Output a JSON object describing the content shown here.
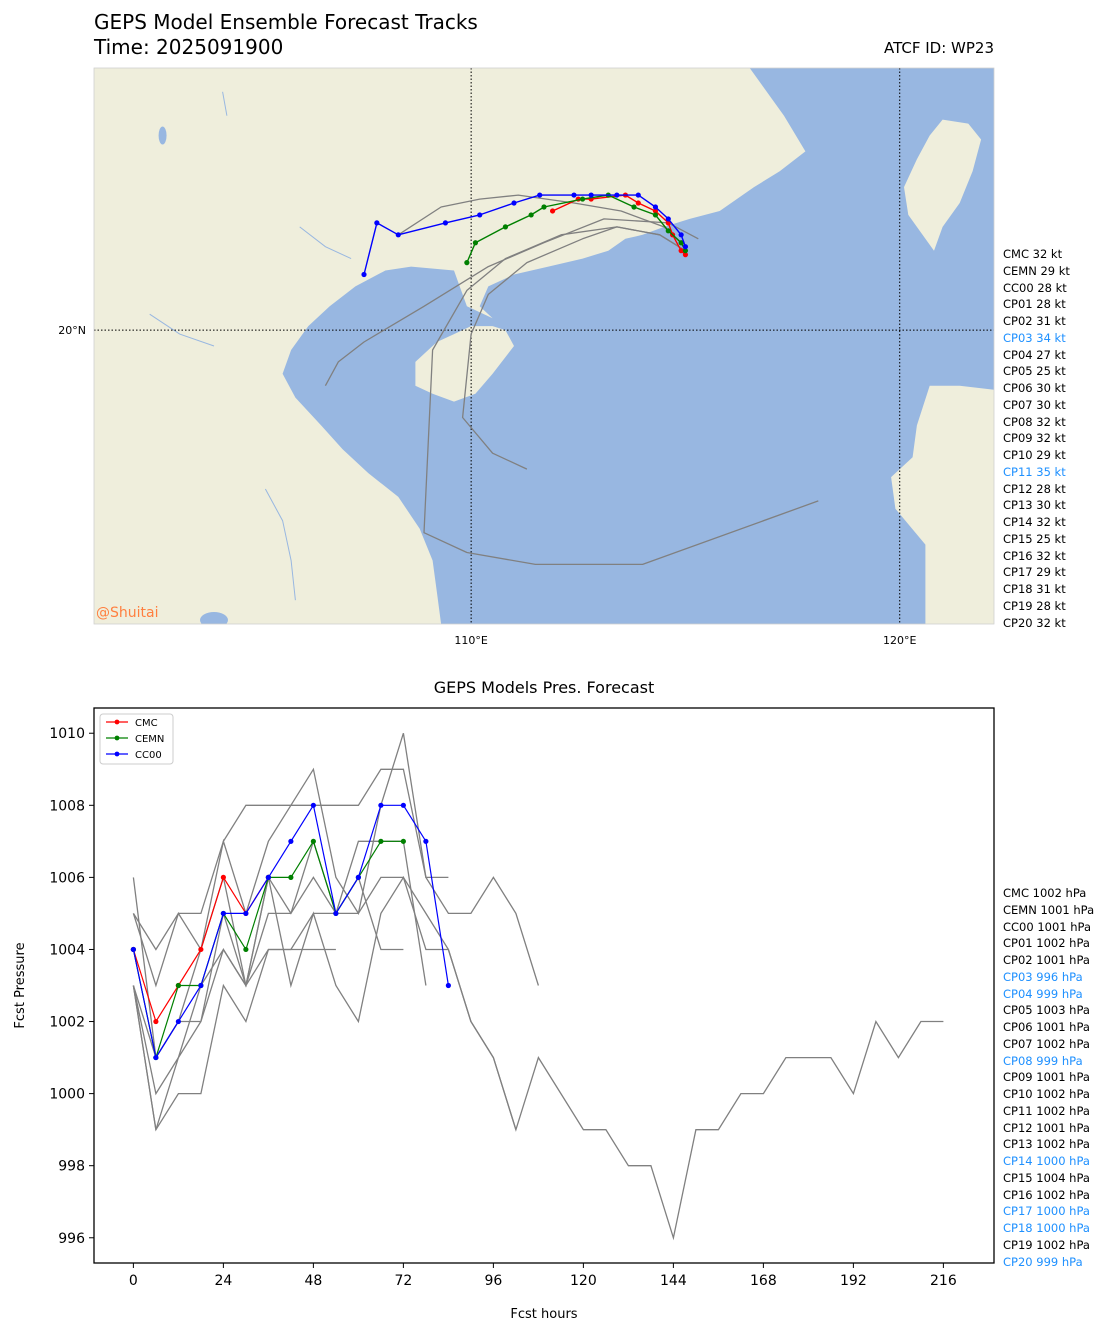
{
  "header": {
    "title": "GEPS Model Ensemble Forecast Tracks",
    "time": "Time: 2025091900",
    "atcf": "ATCF ID: WP23",
    "watermark": "@Shuitai"
  },
  "map": {
    "lat_labels": [
      "20°N"
    ],
    "lon_labels": [
      "110°E",
      "120°E"
    ],
    "colors": {
      "land": "#efeedc",
      "water": "#98b7e1",
      "river": "#98b7e1"
    }
  },
  "track_labels": [
    {
      "text": "CMC 32 kt",
      "highlight": false
    },
    {
      "text": "CEMN 29 kt",
      "highlight": false
    },
    {
      "text": "CC00 28 kt",
      "highlight": false
    },
    {
      "text": "CP01 28 kt",
      "highlight": false
    },
    {
      "text": "CP02 31 kt",
      "highlight": false
    },
    {
      "text": "CP03 34 kt",
      "highlight": true
    },
    {
      "text": "CP04 27 kt",
      "highlight": false
    },
    {
      "text": "CP05 25 kt",
      "highlight": false
    },
    {
      "text": "CP06 30 kt",
      "highlight": false
    },
    {
      "text": "CP07 30 kt",
      "highlight": false
    },
    {
      "text": "CP08 32 kt",
      "highlight": false
    },
    {
      "text": "CP09 32 kt",
      "highlight": false
    },
    {
      "text": "CP10 29 kt",
      "highlight": false
    },
    {
      "text": "CP11 35 kt",
      "highlight": true
    },
    {
      "text": "CP12 28 kt",
      "highlight": false
    },
    {
      "text": "CP13 30 kt",
      "highlight": false
    },
    {
      "text": "CP14 32 kt",
      "highlight": false
    },
    {
      "text": "CP15 25 kt",
      "highlight": false
    },
    {
      "text": "CP16 32 kt",
      "highlight": false
    },
    {
      "text": "CP17 29 kt",
      "highlight": false
    },
    {
      "text": "CP18 31 kt",
      "highlight": false
    },
    {
      "text": "CP19 28 kt",
      "highlight": false
    },
    {
      "text": "CP20 32 kt",
      "highlight": false
    }
  ],
  "pressure_labels": [
    {
      "text": "CMC 1002 hPa",
      "highlight": false
    },
    {
      "text": "CEMN 1001 hPa",
      "highlight": false
    },
    {
      "text": "CC00 1001 hPa",
      "highlight": false
    },
    {
      "text": "CP01 1002 hPa",
      "highlight": false
    },
    {
      "text": "CP02 1001 hPa",
      "highlight": false
    },
    {
      "text": "CP03 996 hPa",
      "highlight": true
    },
    {
      "text": "CP04 999 hPa",
      "highlight": true
    },
    {
      "text": "CP05 1003 hPa",
      "highlight": false
    },
    {
      "text": "CP06 1001 hPa",
      "highlight": false
    },
    {
      "text": "CP07 1002 hPa",
      "highlight": false
    },
    {
      "text": "CP08 999 hPa",
      "highlight": true
    },
    {
      "text": "CP09 1001 hPa",
      "highlight": false
    },
    {
      "text": "CP10 1002 hPa",
      "highlight": false
    },
    {
      "text": "CP11 1002 hPa",
      "highlight": false
    },
    {
      "text": "CP12 1001 hPa",
      "highlight": false
    },
    {
      "text": "CP13 1002 hPa",
      "highlight": false
    },
    {
      "text": "CP14 1000 hPa",
      "highlight": true
    },
    {
      "text": "CP15 1004 hPa",
      "highlight": false
    },
    {
      "text": "CP16 1002 hPa",
      "highlight": false
    },
    {
      "text": "CP17 1000 hPa",
      "highlight": true
    },
    {
      "text": "CP18 1000 hPa",
      "highlight": true
    },
    {
      "text": "CP19 1002 hPa",
      "highlight": false
    },
    {
      "text": "CP20 999 hPa",
      "highlight": true
    }
  ],
  "chart_data": [
    {
      "type": "line",
      "title": "GEPS Model Ensemble Forecast Tracks",
      "xlabel": "",
      "ylabel": "",
      "xlim": [
        101.2,
        122.2
      ],
      "ylim": [
        12.6,
        26.6
      ],
      "xticks": [
        110,
        120
      ],
      "yticks": [
        20
      ],
      "series": [
        {
          "name": "CMC",
          "color": "#ff0000",
          "lon": [
            115.0,
            114.9,
            114.7,
            114.6,
            114.3,
            113.9,
            113.6,
            112.8,
            112.5,
            111.9
          ],
          "lat": [
            21.9,
            22.0,
            22.4,
            22.7,
            23.0,
            23.2,
            23.4,
            23.3,
            23.3,
            23.0
          ]
        },
        {
          "name": "CEMN",
          "color": "#008000",
          "lon": [
            115.0,
            114.9,
            114.6,
            114.3,
            113.8,
            113.2,
            112.6,
            111.7,
            111.4,
            110.8,
            110.1,
            109.9
          ],
          "lat": [
            22.0,
            22.2,
            22.5,
            22.9,
            23.1,
            23.4,
            23.3,
            23.1,
            22.9,
            22.6,
            22.2,
            21.7
          ]
        },
        {
          "name": "CC00",
          "color": "#0000ff",
          "lon": [
            115.0,
            114.9,
            114.6,
            114.3,
            113.9,
            113.4,
            112.8,
            112.4,
            111.6,
            111.0,
            110.2,
            109.4,
            108.3,
            107.8,
            107.5
          ],
          "lat": [
            22.1,
            22.4,
            22.8,
            23.1,
            23.4,
            23.4,
            23.4,
            23.4,
            23.4,
            23.2,
            22.9,
            22.7,
            22.4,
            22.7,
            21.4
          ]
        },
        {
          "name": "",
          "color": "#808080",
          "lon": [
            115.3,
            114.6,
            113.1,
            111.7,
            110.4,
            108.9,
            107.5,
            106.9,
            106.6
          ],
          "lat": [
            22.3,
            22.7,
            22.8,
            22.2,
            21.6,
            20.6,
            19.7,
            19.2,
            18.6
          ]
        },
        {
          "name": "",
          "color": "#808080",
          "lon": [
            115.0,
            114.4,
            113.4,
            112.6,
            111.3,
            110.4,
            110.0,
            109.8,
            110.5,
            111.3
          ],
          "lat": [
            22.0,
            22.4,
            22.6,
            22.3,
            21.7,
            20.9,
            19.9,
            17.8,
            16.9,
            16.5
          ]
        },
        {
          "name": "",
          "color": "#808080",
          "lon": [
            115.0,
            114.4,
            113.4,
            112.1,
            110.8,
            109.9,
            109.1,
            108.9,
            109.9,
            111.5,
            114.0,
            118.1
          ],
          "lat": [
            22.0,
            22.4,
            22.6,
            22.4,
            21.8,
            21.0,
            19.5,
            14.9,
            14.4,
            14.1,
            14.1,
            15.7
          ]
        },
        {
          "name": "",
          "color": "#808080",
          "lon": [
            115.0,
            114.5,
            113.5,
            112.4,
            111.1,
            110.2,
            109.3,
            108.3
          ],
          "lat": [
            22.1,
            22.6,
            23.0,
            23.2,
            23.4,
            23.3,
            23.1,
            22.4
          ]
        }
      ]
    },
    {
      "type": "line",
      "title": "GEPS Models Pres. Forecast",
      "xlabel": "Fcst hours",
      "ylabel": "Fcst Pressure",
      "xlim": [
        -10.5,
        229.5
      ],
      "ylim": [
        995.3,
        1010.7
      ],
      "xticks": [
        0,
        24,
        48,
        72,
        96,
        120,
        144,
        168,
        192,
        216
      ],
      "yticks": [
        996,
        998,
        1000,
        1002,
        1004,
        1006,
        1008,
        1010
      ],
      "legend": "upper-left",
      "series": [
        {
          "name": "CMC",
          "color": "#ff0000",
          "x": [
            0,
            6,
            12,
            18,
            24,
            30,
            36
          ],
          "y": [
            1004,
            1002,
            1003,
            1004,
            1006,
            1005,
            1006
          ]
        },
        {
          "name": "CEMN",
          "color": "#008000",
          "x": [
            0,
            6,
            12,
            18,
            24,
            30,
            36,
            42,
            48,
            54,
            60,
            66,
            72
          ],
          "y": [
            1004,
            1001,
            1003,
            1003,
            1005,
            1004,
            1006,
            1006,
            1007,
            1005,
            1006,
            1007,
            1007
          ]
        },
        {
          "name": "CC00",
          "color": "#0000ff",
          "x": [
            0,
            6,
            12,
            18,
            24,
            30,
            36,
            42,
            48,
            54,
            60,
            66,
            72,
            78,
            84
          ],
          "y": [
            1004,
            1001,
            1002,
            1003,
            1005,
            1005,
            1006,
            1007,
            1008,
            1005,
            1006,
            1008,
            1008,
            1007,
            1003
          ]
        },
        {
          "name": "",
          "color": "#808080",
          "x": [
            0,
            6,
            12,
            18,
            24,
            30,
            36,
            42,
            48,
            54,
            60,
            66,
            72,
            78,
            84,
            90,
            96,
            102,
            108,
            114,
            120,
            126,
            132,
            138,
            144,
            150,
            156,
            162,
            168,
            174,
            180,
            186,
            192,
            198,
            204,
            210,
            216
          ],
          "y": [
            1003,
            999,
            1000,
            1000,
            1003,
            1002,
            1004,
            1004,
            1005,
            1005,
            1005,
            1006,
            1006,
            1005,
            1004,
            1002,
            1001,
            999,
            1001,
            1000,
            999,
            999,
            998,
            998,
            996,
            999,
            999,
            1000,
            1000,
            1001,
            1001,
            1001,
            1000,
            1002,
            1001,
            1002,
            1002
          ]
        },
        {
          "name": "",
          "color": "#808080",
          "x": [
            0,
            6,
            12,
            18,
            24,
            30,
            36,
            42,
            48,
            54,
            60,
            66,
            72,
            78,
            84,
            90,
            96,
            102,
            108
          ],
          "y": [
            1005,
            1004,
            1005,
            1005,
            1007,
            1008,
            1008,
            1008,
            1008,
            1008,
            1008,
            1009,
            1009,
            1006,
            1005,
            1005,
            1006,
            1005,
            1003
          ]
        },
        {
          "name": "",
          "color": "#808080",
          "x": [
            0,
            6,
            12,
            18,
            24,
            30,
            36,
            42,
            48,
            54,
            60,
            66,
            72,
            78,
            84
          ],
          "y": [
            1006,
            1001,
            1002,
            1004,
            1007,
            1005,
            1007,
            1008,
            1009,
            1006,
            1005,
            1008,
            1010,
            1006,
            1006
          ]
        },
        {
          "name": "",
          "color": "#808080",
          "x": [
            0,
            6,
            12,
            18,
            24,
            30,
            36,
            42,
            48,
            54
          ],
          "y": [
            1005,
            1003,
            1005,
            1004,
            1006,
            1003,
            1004,
            1004,
            1004,
            1004
          ]
        },
        {
          "name": "",
          "color": "#808080",
          "x": [
            0,
            6,
            12,
            18,
            24,
            30,
            36,
            42,
            48,
            54,
            60,
            66,
            72,
            78,
            84,
            90,
            96,
            102
          ],
          "y": [
            1003,
            1000,
            1001,
            1002,
            1004,
            1003,
            1006,
            1003,
            1005,
            1003,
            1002,
            1005,
            1006,
            1004,
            1004,
            1002,
            1001,
            999
          ]
        },
        {
          "name": "",
          "color": "#808080",
          "x": [
            0,
            6,
            12,
            18,
            24,
            30,
            36,
            42,
            48,
            54,
            60,
            66,
            72
          ],
          "y": [
            1003,
            999,
            1001,
            1003,
            1004,
            1003,
            1006,
            1005,
            1006,
            1005,
            1006,
            1004,
            1004
          ]
        },
        {
          "name": "",
          "color": "#808080",
          "x": [
            0,
            6,
            12,
            18,
            24,
            30,
            36,
            42,
            48,
            54,
            60,
            66,
            72,
            78
          ],
          "y": [
            1003,
            1001,
            1002,
            1002,
            1005,
            1003,
            1005,
            1005,
            1007,
            1005,
            1007,
            1007,
            1007,
            1003
          ]
        }
      ]
    }
  ]
}
